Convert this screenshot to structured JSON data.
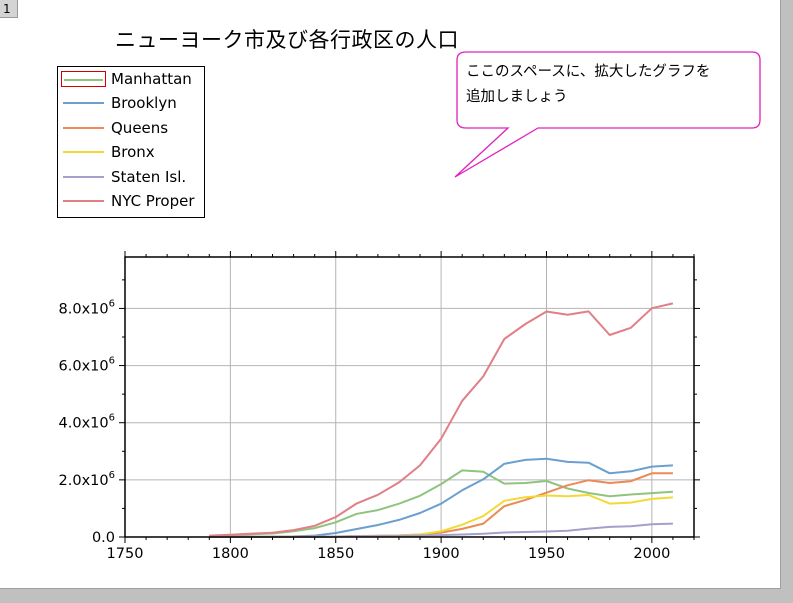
{
  "page_number": "1",
  "colors": {
    "Manhattan": "#8fc47f",
    "Brooklyn": "#6a9fd0",
    "Queens": "#ea8a55",
    "Bronx": "#f3d936",
    "Staten Isl.": "#a49fcb",
    "NYC Proper": "#e07f86",
    "callout_border": "#e020c0",
    "legend_highlight": "#d40000"
  },
  "annotation": {
    "line1": "ここのスペースに、拡大したグラフを",
    "line2": "追加しましょう"
  },
  "chart_data": {
    "type": "line",
    "title": "ニューヨーク市及び各行政区の人口",
    "xlabel": "",
    "ylabel": "",
    "xlim": [
      1750,
      2020
    ],
    "ylim": [
      0,
      9800000
    ],
    "x_ticks": [
      1750,
      1800,
      1850,
      1900,
      1950,
      2000
    ],
    "x_tick_labels": [
      "1750",
      "1800",
      "1850",
      "1900",
      "1950",
      "2000"
    ],
    "y_ticks": [
      0,
      2000000,
      4000000,
      6000000,
      8000000
    ],
    "y_tick_labels": [
      {
        "mantissa": "0.0",
        "exponent": ""
      },
      {
        "mantissa": "2.0x10",
        "exponent": "6"
      },
      {
        "mantissa": "4.0x10",
        "exponent": "6"
      },
      {
        "mantissa": "6.0x10",
        "exponent": "6"
      },
      {
        "mantissa": "8.0x10",
        "exponent": "6"
      }
    ],
    "grid": true,
    "legend_position": "top-left",
    "x": [
      1790,
      1800,
      1810,
      1820,
      1830,
      1840,
      1850,
      1860,
      1870,
      1880,
      1890,
      1900,
      1910,
      1920,
      1930,
      1940,
      1950,
      1960,
      1970,
      1980,
      1990,
      2000,
      2010
    ],
    "series": [
      {
        "name": "Manhattan",
        "values": [
          33131,
          60515,
          96373,
          123706,
          202589,
          312710,
          515547,
          813669,
          942292,
          1164673,
          1441216,
          1850093,
          2331542,
          2284103,
          1867312,
          1889924,
          1960101,
          1698281,
          1539233,
          1428285,
          1487536,
          1537195,
          1585873
        ]
      },
      {
        "name": "Brooklyn",
        "values": [
          4549,
          5740,
          8303,
          11187,
          20535,
          47613,
          138882,
          279122,
          419921,
          599495,
          838547,
          1166582,
          1634351,
          2018356,
          2560401,
          2698285,
          2738175,
          2627319,
          2602012,
          2230936,
          2300664,
          2465326,
          2504700
        ]
      },
      {
        "name": "Queens",
        "values": [
          6159,
          6642,
          7444,
          8246,
          9049,
          14480,
          18593,
          32903,
          45468,
          56559,
          87050,
          152999,
          284041,
          469042,
          1079129,
          1297634,
          1550849,
          1809578,
          1986473,
          1891325,
          1951598,
          2229379,
          2230722
        ]
      },
      {
        "name": "Bronx",
        "values": [
          1781,
          1755,
          2267,
          2782,
          3023,
          5346,
          8032,
          23593,
          37393,
          51980,
          88908,
          200507,
          430980,
          732016,
          1265258,
          1394711,
          1451277,
          1424815,
          1471701,
          1168972,
          1203789,
          1332650,
          1385108
        ]
      },
      {
        "name": "Staten Isl.",
        "values": [
          3827,
          4563,
          5347,
          6135,
          7082,
          10965,
          15061,
          25492,
          33029,
          38991,
          51693,
          67021,
          85969,
          116531,
          158346,
          174441,
          191555,
          221991,
          295443,
          352121,
          378977,
          443728,
          468730
        ]
      },
      {
        "name": "NYC Proper",
        "values": [
          49447,
          79216,
          119734,
          152056,
          242278,
          391114,
          696115,
          1174779,
          1478103,
          1911698,
          2507414,
          3437202,
          4766883,
          5620048,
          6930446,
          7454995,
          7891957,
          7781984,
          7894862,
          7071639,
          7322564,
          8008278,
          8175133
        ]
      }
    ]
  }
}
